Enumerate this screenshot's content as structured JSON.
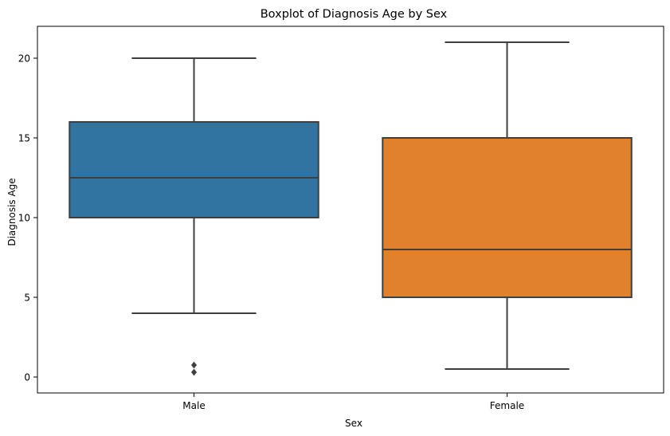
{
  "chart_data": {
    "type": "boxplot",
    "title": "Boxplot of Diagnosis Age by Sex",
    "xlabel": "Sex",
    "ylabel": "Diagnosis Age",
    "ylim": [
      -1,
      22
    ],
    "yticks": [
      0,
      5,
      10,
      15,
      20
    ],
    "grid": false,
    "categories": [
      "Male",
      "Female"
    ],
    "boxes": [
      {
        "category": "Male",
        "whisker_low": 4,
        "q1": 10,
        "median": 12.5,
        "q3": 16,
        "whisker_high": 20,
        "outliers": [
          0.3,
          0.75
        ],
        "color": "#3274a1"
      },
      {
        "category": "Female",
        "whisker_low": 0.5,
        "q1": 5,
        "median": 8,
        "q3": 15,
        "whisker_high": 21,
        "outliers": [],
        "color": "#e1812c"
      }
    ],
    "line_color": "#3f3f3f"
  }
}
